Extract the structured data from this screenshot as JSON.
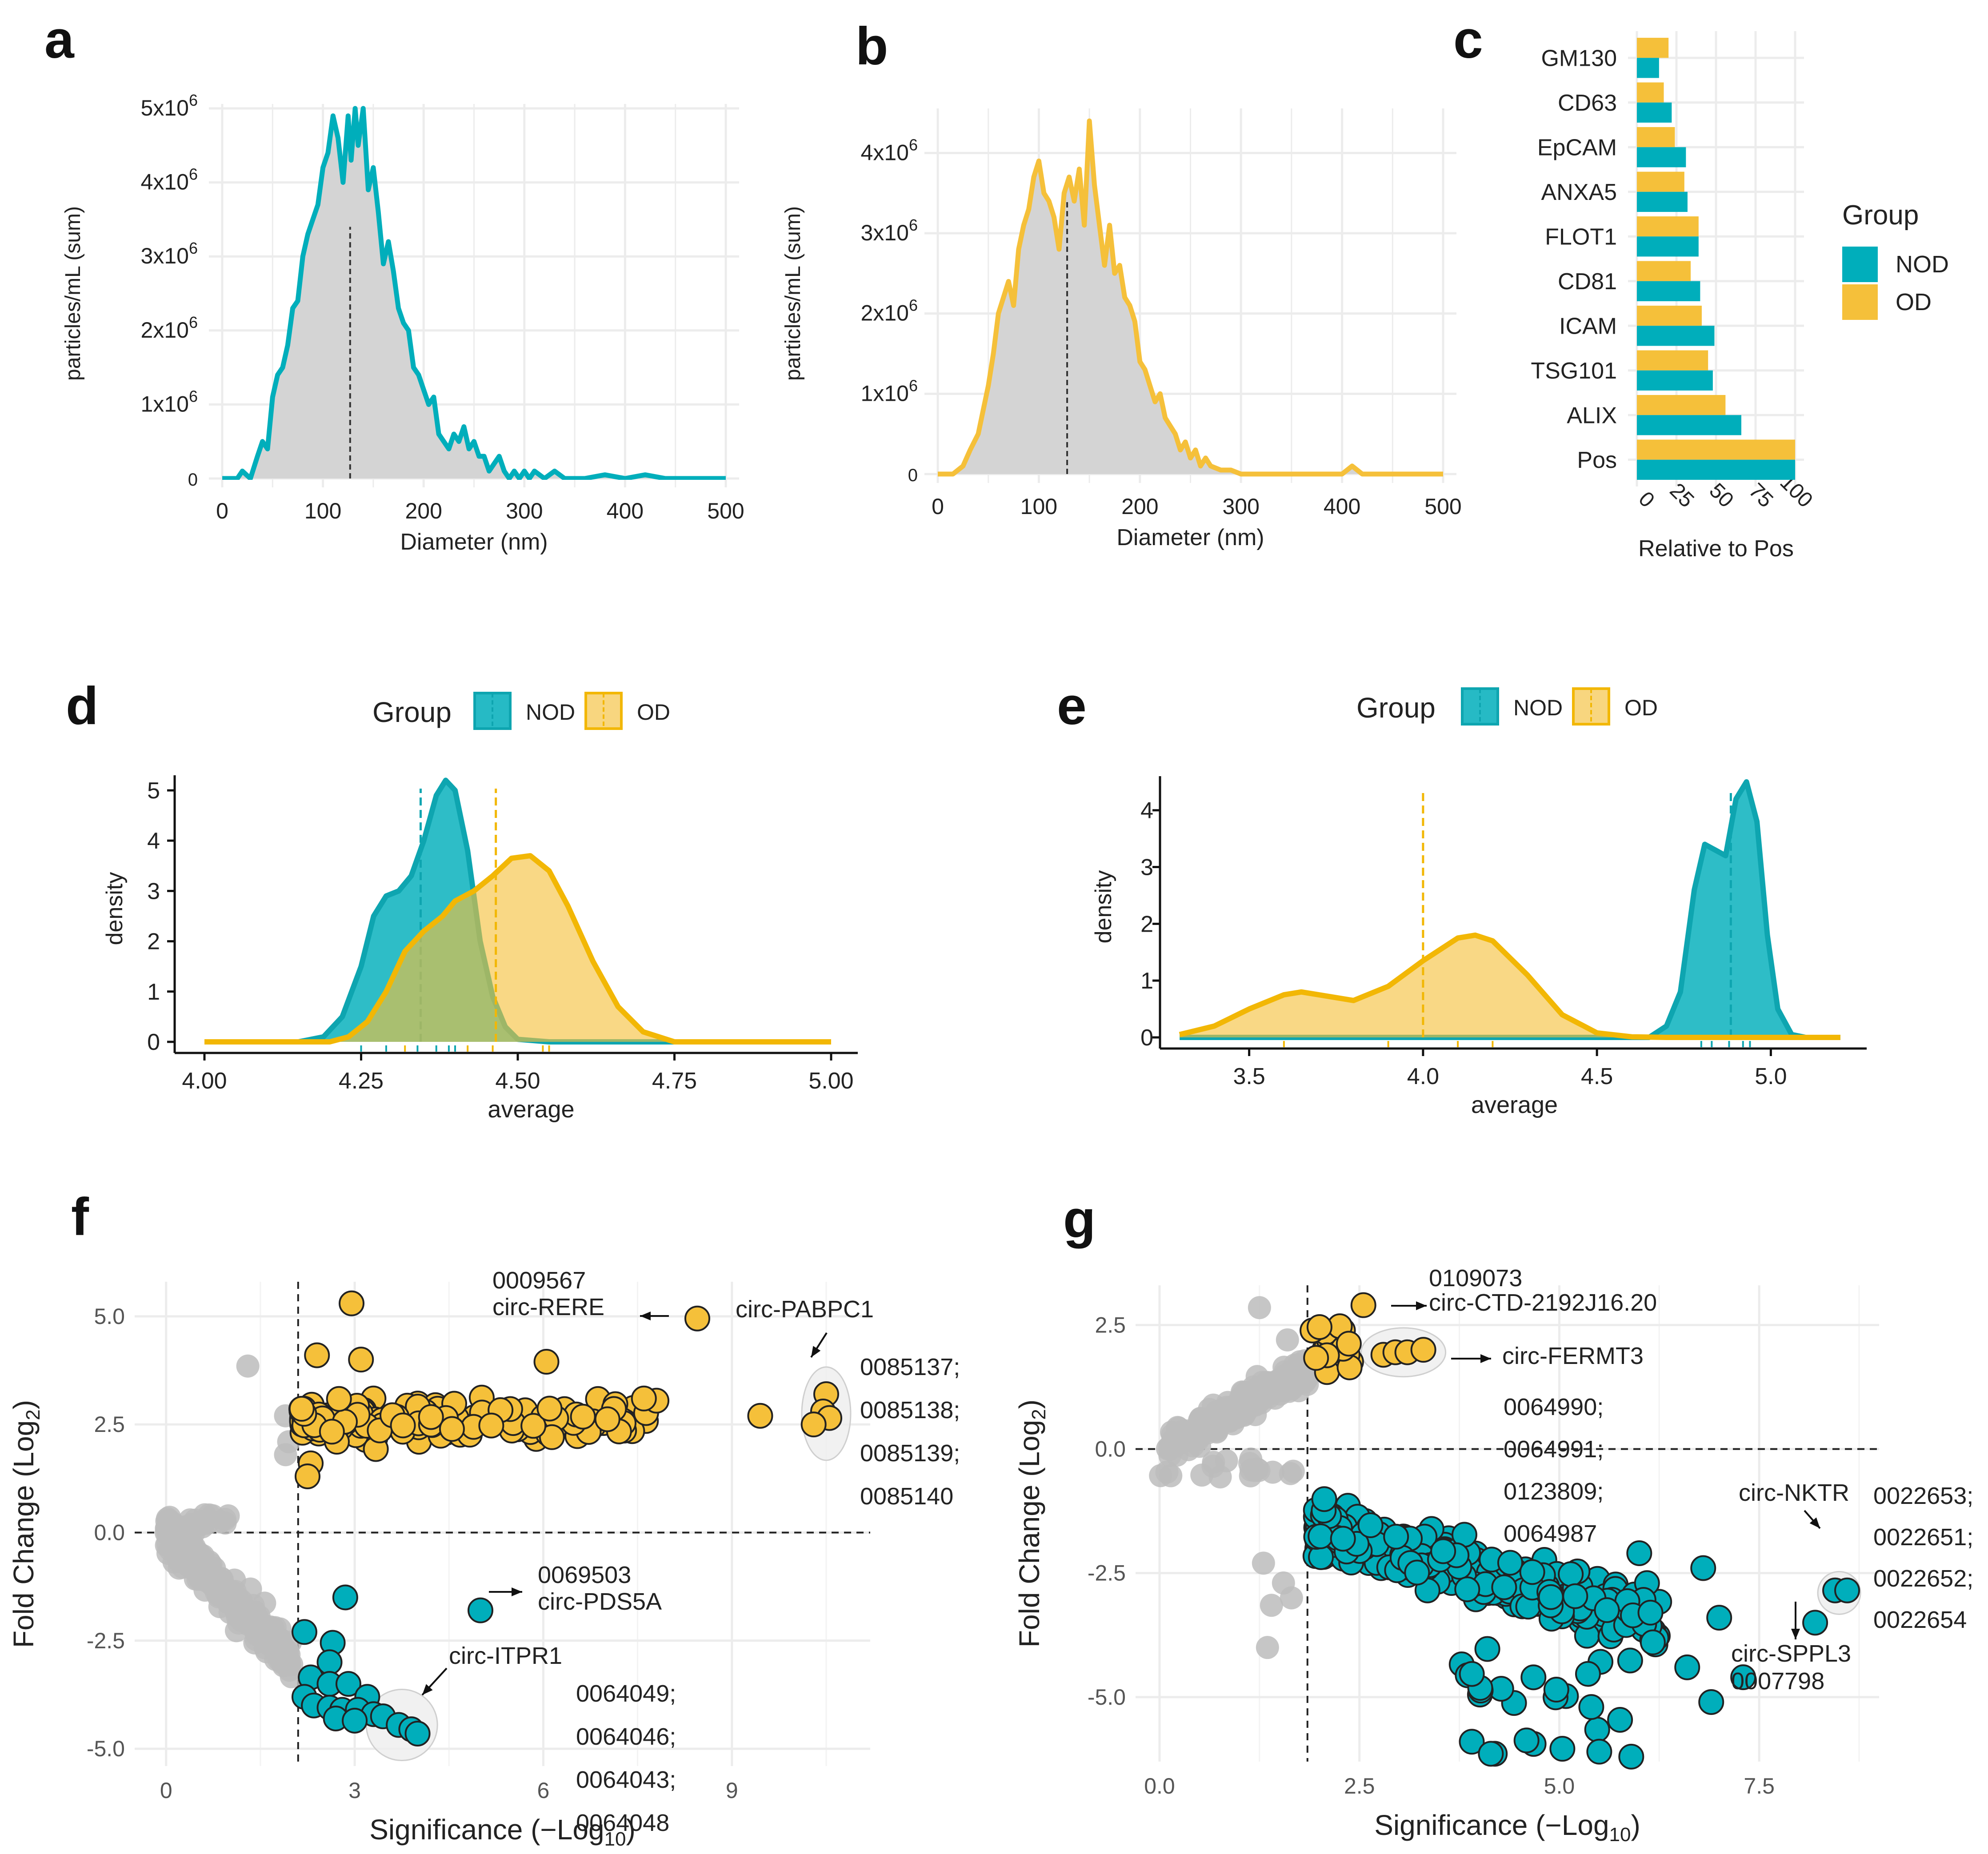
{
  "colors": {
    "nod": "#00AEBB",
    "od": "#F5C03A",
    "gray": "#bcbcbc",
    "fill_gray": "#d4d4d4",
    "grid": "#ececec"
  },
  "panel_letters": [
    "a",
    "b",
    "c",
    "d",
    "e",
    "f",
    "g"
  ],
  "chart_data": [
    {
      "id": "a",
      "type": "area",
      "xlabel": "Diameter (nm)",
      "ylabel": "particles/mL (sum)",
      "xlim": [
        0,
        500
      ],
      "ylim": [
        0,
        5000000
      ],
      "xticks": [
        0,
        100,
        200,
        300,
        400,
        500
      ],
      "yticks": [
        {
          "v": 0,
          "b": "0",
          "e": ""
        },
        {
          "v": 1000000,
          "b": "1x10",
          "e": "6"
        },
        {
          "v": 2000000,
          "b": "2x10",
          "e": "6"
        },
        {
          "v": 3000000,
          "b": "3x10",
          "e": "6"
        },
        {
          "v": 4000000,
          "b": "4x10",
          "e": "6"
        },
        {
          "v": 5000000,
          "b": "5x10",
          "e": "6"
        }
      ],
      "mean_line": 127,
      "x": [
        0,
        15,
        20,
        28,
        35,
        40,
        45,
        50,
        55,
        60,
        65,
        70,
        75,
        80,
        85,
        90,
        95,
        100,
        105,
        110,
        115,
        120,
        125,
        128,
        132,
        135,
        140,
        145,
        150,
        155,
        160,
        165,
        170,
        175,
        180,
        185,
        190,
        195,
        200,
        205,
        210,
        215,
        220,
        225,
        230,
        235,
        240,
        245,
        250,
        255,
        260,
        265,
        270,
        275,
        280,
        285,
        290,
        295,
        300,
        305,
        310,
        320,
        330,
        340,
        350,
        360,
        380,
        400,
        420,
        440,
        460,
        480,
        500
      ],
      "y": [
        0,
        0,
        100000,
        0,
        300000,
        500000,
        400000,
        1100000,
        1400000,
        1500000,
        1800000,
        2300000,
        2400000,
        3000000,
        3300000,
        3500000,
        3700000,
        4200000,
        4400000,
        4900000,
        4600000,
        4000000,
        4900000,
        4300000,
        5000000,
        4500000,
        5000000,
        3900000,
        4200000,
        3600000,
        2900000,
        3200000,
        2800000,
        2300000,
        2100000,
        2000000,
        1500000,
        1400000,
        1200000,
        1000000,
        1100000,
        600000,
        500000,
        400000,
        600000,
        500000,
        700000,
        400000,
        500000,
        300000,
        300000,
        100000,
        200000,
        300000,
        100000,
        0,
        100000,
        0,
        100000,
        0,
        100000,
        0,
        100000,
        0,
        0,
        0,
        50000,
        0,
        50000,
        0,
        0,
        0,
        0
      ]
    },
    {
      "id": "b",
      "type": "area",
      "xlabel": "Diameter (nm)",
      "ylabel": "particles/mL (sum)",
      "xlim": [
        0,
        500
      ],
      "ylim": [
        0,
        4500000
      ],
      "xticks": [
        0,
        100,
        200,
        300,
        400,
        500
      ],
      "yticks": [
        {
          "v": 0,
          "b": "0",
          "e": ""
        },
        {
          "v": 1000000,
          "b": "1x10",
          "e": "6"
        },
        {
          "v": 2000000,
          "b": "2x10",
          "e": "6"
        },
        {
          "v": 3000000,
          "b": "3x10",
          "e": "6"
        },
        {
          "v": 4000000,
          "b": "4x10",
          "e": "6"
        }
      ],
      "mean_line": 128,
      "x": [
        0,
        15,
        25,
        32,
        40,
        45,
        50,
        55,
        60,
        65,
        70,
        75,
        80,
        85,
        90,
        95,
        100,
        105,
        110,
        115,
        120,
        125,
        130,
        135,
        140,
        145,
        150,
        155,
        160,
        165,
        170,
        175,
        180,
        185,
        190,
        195,
        200,
        205,
        210,
        215,
        220,
        225,
        230,
        235,
        240,
        245,
        250,
        255,
        260,
        265,
        270,
        280,
        290,
        300,
        320,
        340,
        360,
        380,
        400,
        410,
        420,
        440,
        460,
        480,
        500
      ],
      "y": [
        0,
        0,
        100000,
        300000,
        500000,
        800000,
        1100000,
        1500000,
        2000000,
        2200000,
        2400000,
        2100000,
        2800000,
        3100000,
        3300000,
        3700000,
        3900000,
        3500000,
        3400000,
        3200000,
        2800000,
        3500000,
        3700000,
        3400000,
        3800000,
        3100000,
        4400000,
        3600000,
        3100000,
        2600000,
        3100000,
        2500000,
        2600000,
        2200000,
        2100000,
        1900000,
        1400000,
        1300000,
        1100000,
        900000,
        1000000,
        700000,
        600000,
        500000,
        300000,
        400000,
        200000,
        300000,
        100000,
        200000,
        100000,
        50000,
        50000,
        0,
        0,
        0,
        0,
        0,
        0,
        100000,
        0,
        0,
        0,
        0,
        0
      ]
    },
    {
      "id": "c",
      "type": "bar",
      "orientation": "horizontal",
      "xlabel": "Relative to Pos",
      "ylabel": "",
      "xlim": [
        0,
        100
      ],
      "xticks": [
        0,
        25,
        50,
        75,
        100
      ],
      "categories": [
        "GM130",
        "CD63",
        "EpCAM",
        "ANXA5",
        "FLOT1",
        "CD81",
        "ICAM",
        "TSG101",
        "ALIX",
        "Pos"
      ],
      "series": [
        {
          "name": "NOD",
          "values": [
            14,
            22,
            31,
            32,
            39,
            40,
            49,
            48,
            66,
            100
          ]
        },
        {
          "name": "OD",
          "values": [
            20,
            17,
            24,
            30,
            39,
            34,
            41,
            45,
            56,
            100
          ]
        }
      ],
      "legend": {
        "title": "Group",
        "items": [
          "NOD",
          "OD"
        ],
        "position": "right"
      }
    },
    {
      "id": "d",
      "type": "area",
      "subtype": "density",
      "xlabel": "average",
      "ylabel": "density",
      "xlim": [
        4.0,
        5.0
      ],
      "ylim": [
        0,
        5.3
      ],
      "xticks": [
        "4.00",
        "4.25",
        "4.50",
        "4.75",
        "5.00"
      ],
      "yticks": [
        0,
        1,
        2,
        3,
        4,
        5
      ],
      "legend": {
        "title": "Group",
        "items": [
          "NOD",
          "OD"
        ],
        "position": "top"
      },
      "series": [
        {
          "name": "NOD",
          "mean": 4.345,
          "x": [
            4.0,
            4.15,
            4.19,
            4.22,
            4.25,
            4.27,
            4.29,
            4.31,
            4.33,
            4.35,
            4.37,
            4.385,
            4.4,
            4.42,
            4.44,
            4.46,
            4.48,
            4.5,
            4.55,
            5.0
          ],
          "y": [
            0,
            0,
            0.1,
            0.5,
            1.5,
            2.5,
            2.9,
            3.0,
            3.3,
            4.0,
            4.9,
            5.2,
            5.0,
            3.8,
            2.0,
            0.9,
            0.3,
            0.05,
            0,
            0
          ]
        },
        {
          "name": "OD",
          "mean": 4.465,
          "x": [
            4.0,
            4.2,
            4.23,
            4.26,
            4.29,
            4.32,
            4.35,
            4.38,
            4.4,
            4.43,
            4.46,
            4.49,
            4.52,
            4.55,
            4.58,
            4.62,
            4.66,
            4.7,
            4.75,
            5.0
          ],
          "y": [
            0,
            0,
            0.1,
            0.4,
            1.0,
            1.8,
            2.2,
            2.5,
            2.8,
            3.0,
            3.3,
            3.65,
            3.7,
            3.4,
            2.7,
            1.6,
            0.7,
            0.2,
            0,
            0
          ]
        }
      ],
      "rug": {
        "NOD": [
          4.25,
          4.29,
          4.34,
          4.37,
          4.39,
          4.4
        ],
        "OD": [
          4.32,
          4.42,
          4.46,
          4.54,
          4.55
        ]
      }
    },
    {
      "id": "e",
      "type": "area",
      "subtype": "density",
      "xlabel": "average",
      "ylabel": "density",
      "xlim": [
        3.25,
        5.25
      ],
      "ylim": [
        0,
        4.6
      ],
      "xticks": [
        "3.5",
        "4.0",
        "4.5",
        "5.0"
      ],
      "yticks": [
        0,
        1,
        2,
        3,
        4
      ],
      "legend": {
        "title": "Group",
        "items": [
          "NOD",
          "OD"
        ],
        "position": "top"
      },
      "series": [
        {
          "name": "NOD",
          "mean": 4.885,
          "x": [
            3.3,
            4.65,
            4.7,
            4.74,
            4.78,
            4.81,
            4.84,
            4.87,
            4.9,
            4.93,
            4.96,
            4.99,
            5.02,
            5.06,
            5.1,
            5.2
          ],
          "y": [
            0,
            0,
            0.2,
            0.8,
            2.6,
            3.4,
            3.3,
            3.2,
            4.2,
            4.5,
            3.8,
            1.8,
            0.5,
            0.05,
            0,
            0
          ]
        },
        {
          "name": "OD",
          "mean": 4.0,
          "x": [
            3.3,
            3.4,
            3.5,
            3.6,
            3.65,
            3.7,
            3.8,
            3.9,
            4.0,
            4.1,
            4.15,
            4.2,
            4.3,
            4.4,
            4.5,
            4.6,
            4.7,
            5.2
          ],
          "y": [
            0.05,
            0.2,
            0.5,
            0.75,
            0.8,
            0.75,
            0.65,
            0.9,
            1.35,
            1.75,
            1.8,
            1.7,
            1.1,
            0.4,
            0.08,
            0.01,
            0,
            0
          ]
        }
      ],
      "rug": {
        "NOD": [
          4.8,
          4.83,
          4.88,
          4.92,
          4.94
        ],
        "OD": [
          3.6,
          3.9,
          4.1,
          4.2
        ]
      }
    },
    {
      "id": "f",
      "type": "scatter",
      "subtype": "volcano",
      "xlabel_base": "Significance (−Log",
      "xlabel_sub": "10",
      "xlabel_end": ")",
      "ylabel_base": "Fold Change (Log",
      "ylabel_sub": "2",
      "ylabel_end": ")",
      "xlim": [
        -0.5,
        11.2
      ],
      "ylim": [
        -5.4,
        5.8
      ],
      "xticks": [
        "0",
        "3",
        "6",
        "9"
      ],
      "yticks": [
        "5.0",
        "2.5",
        "0.0",
        "-2.5",
        "-5.0"
      ],
      "vline": 2.1,
      "hline": 0,
      "annotations": [
        {
          "lines": [
            "0009567",
            "circ-RERE"
          ],
          "x": 8.5,
          "y": 5.0
        },
        {
          "lines": [
            "circ-PABPC1"
          ],
          "x": 10.5,
          "y": 3.0
        },
        {
          "lines": [
            "0085137;",
            "0085138;",
            "0085139;",
            "0085140"
          ],
          "x": 10.5,
          "y": 2.7
        },
        {
          "lines": [
            "0069503",
            "circ-PDS5A"
          ],
          "x": 5.0,
          "y": -1.8
        },
        {
          "lines": [
            "circ-ITPR1"
          ],
          "x": 4.2,
          "y": -4.6
        },
        {
          "lines": [
            "0064049;",
            "0064046;",
            "0064043;",
            "0064048"
          ],
          "x": 4.2,
          "y": -4.6
        }
      ]
    },
    {
      "id": "g",
      "type": "scatter",
      "subtype": "volcano",
      "xlabel_base": "Significance (−Log",
      "xlabel_sub": "10",
      "xlabel_end": ")",
      "ylabel_base": "Fold Change (Log",
      "ylabel_sub": "2",
      "ylabel_end": ")",
      "xlim": [
        -0.3,
        9.0
      ],
      "ylim": [
        -6.3,
        3.3
      ],
      "xticks": [
        "0.0",
        "2.5",
        "5.0",
        "7.5"
      ],
      "yticks": [
        "2.5",
        "0.0",
        "-2.5",
        "-5.0"
      ],
      "vline": 1.85,
      "hline": 0,
      "annotations": [
        {
          "lines": [
            "0109073",
            "circ-CTD-2192J16.20"
          ],
          "x": 2.55,
          "y": 2.9
        },
        {
          "lines": [
            "circ-FERMT3"
          ],
          "x": 3.0,
          "y": 1.9
        },
        {
          "lines": [
            "0064990;",
            "0064991;",
            "0123809;",
            "0064987"
          ],
          "x": 3.0,
          "y": 1.9
        },
        {
          "lines": [
            "circ-NKTR"
          ],
          "x": 8.5,
          "y": -2.9
        },
        {
          "lines": [
            "0022653;",
            "0022651;",
            "0022652;",
            "0022654"
          ],
          "x": 8.5,
          "y": -2.9
        },
        {
          "lines": [
            "circ-SPPL3",
            "0007798"
          ],
          "x": 8.2,
          "y": -3.5
        }
      ]
    }
  ]
}
